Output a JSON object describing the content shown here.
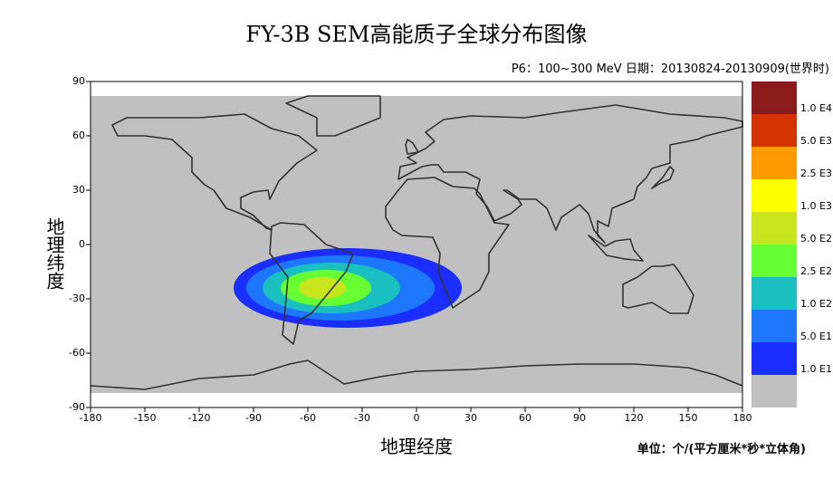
{
  "map": {
    "title": "FY-3B SEM高能质子全球分布图像",
    "subtitle": "P6：100~300 MeV   日期：20130824-20130909(世界时)",
    "x_label": "地理经度",
    "y_label": "地理纬度",
    "unit_label": "单位：个/(平方厘米*秒*立体角)",
    "xlim": [
      -180,
      180
    ],
    "ylim": [
      -90,
      90
    ],
    "xticks": [
      -180,
      -150,
      -120,
      -90,
      -60,
      -30,
      0,
      30,
      60,
      90,
      120,
      150,
      180
    ],
    "yticks": [
      -90,
      -60,
      -30,
      0,
      30,
      60,
      90
    ],
    "colorbar": {
      "colors": [
        "#8b1a1a",
        "#d43200",
        "#ff9900",
        "#ffff00",
        "#c8e61e",
        "#66ff33",
        "#1ac0c0",
        "#1e78ff",
        "#1a2eff",
        "#c0c0c0"
      ],
      "labels": [
        "1.0 E4",
        "5.0 E3",
        "2.5 E3",
        "1.0 E3",
        "5.0 E2",
        "2.5 E2",
        "1.0 E2",
        "5.0 E1",
        "1.0 E1"
      ]
    }
  }
}
